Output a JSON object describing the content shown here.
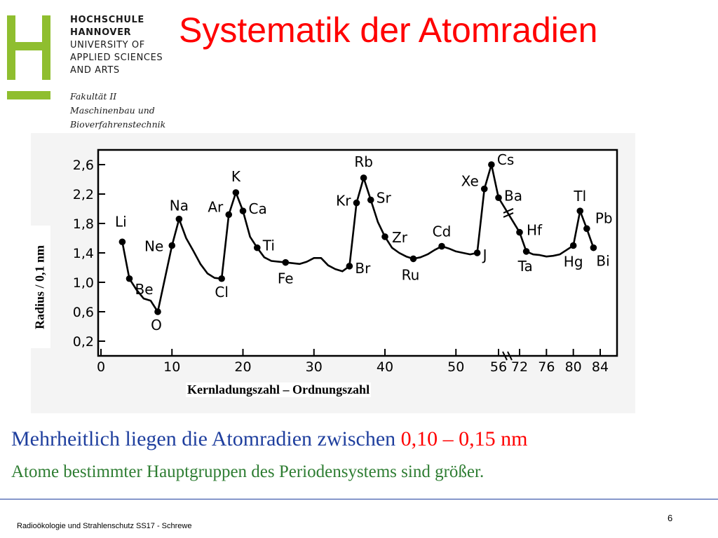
{
  "header": {
    "title": "Systematik der Atomradien",
    "university_lines": [
      "HOCHSCHULE",
      "HANNOVER",
      "UNIVERSITY OF",
      "APPLIED SCIENCES",
      "AND ARTS"
    ],
    "faculty_lines": [
      "Fakultät II",
      "Maschinenbau und",
      "Bioverfahrenstechnik"
    ],
    "logo_color": "#8fbe2f"
  },
  "chart_data": {
    "type": "line",
    "ylabel": "Radius / 0,1 nm",
    "xlabel": "Kernladungszahl – Ordnungszahl",
    "y_ticks": [
      "0,2",
      "0,6",
      "1,0",
      "1,4",
      "1,8",
      "2,2",
      "2,6"
    ],
    "ylim": [
      0,
      2.8
    ],
    "x_ticks": [
      "0",
      "10",
      "20",
      "30",
      "40",
      "50",
      "56",
      "72",
      "76",
      "80",
      "84"
    ],
    "axis_break": "56-72",
    "series": [
      {
        "points": [
          {
            "x": 3,
            "y": 1.55,
            "label": "Li"
          },
          {
            "x": 4,
            "y": 1.05,
            "label": "Be"
          },
          {
            "x": 5,
            "y": 0.9
          },
          {
            "x": 6,
            "y": 0.78
          },
          {
            "x": 7,
            "y": 0.75
          },
          {
            "x": 8,
            "y": 0.6,
            "label": "O"
          },
          {
            "x": 10,
            "y": 1.5,
            "label": "Ne"
          },
          {
            "x": 11,
            "y": 1.86,
            "label": "Na"
          },
          {
            "x": 12,
            "y": 1.6
          },
          {
            "x": 13,
            "y": 1.43
          },
          {
            "x": 14,
            "y": 1.25
          },
          {
            "x": 15,
            "y": 1.12
          },
          {
            "x": 16,
            "y": 1.06
          },
          {
            "x": 17,
            "y": 1.05,
            "label": "Cl"
          },
          {
            "x": 18,
            "y": 1.92,
            "label": "Ar"
          },
          {
            "x": 19,
            "y": 2.22,
            "label": "K"
          },
          {
            "x": 20,
            "y": 1.97,
            "label": "Ca"
          },
          {
            "x": 21,
            "y": 1.62
          },
          {
            "x": 22,
            "y": 1.47,
            "label": "Ti"
          },
          {
            "x": 23,
            "y": 1.34
          },
          {
            "x": 24,
            "y": 1.29
          },
          {
            "x": 25,
            "y": 1.28
          },
          {
            "x": 26,
            "y": 1.27,
            "label": "Fe"
          },
          {
            "x": 27,
            "y": 1.26
          },
          {
            "x": 28,
            "y": 1.25
          },
          {
            "x": 29,
            "y": 1.28
          },
          {
            "x": 30,
            "y": 1.33
          },
          {
            "x": 31,
            "y": 1.33
          },
          {
            "x": 32,
            "y": 1.23
          },
          {
            "x": 33,
            "y": 1.18
          },
          {
            "x": 34,
            "y": 1.15
          },
          {
            "x": 35,
            "y": 1.22,
            "label": "Br"
          },
          {
            "x": 36,
            "y": 2.08,
            "label": "Kr"
          },
          {
            "x": 37,
            "y": 2.42,
            "label": "Rb"
          },
          {
            "x": 38,
            "y": 2.12,
            "label": "Sr"
          },
          {
            "x": 39,
            "y": 1.82
          },
          {
            "x": 40,
            "y": 1.62,
            "label": "Zr"
          },
          {
            "x": 41,
            "y": 1.47
          },
          {
            "x": 42,
            "y": 1.4
          },
          {
            "x": 43,
            "y": 1.35
          },
          {
            "x": 44,
            "y": 1.32,
            "label": "Ru"
          },
          {
            "x": 45,
            "y": 1.34
          },
          {
            "x": 46,
            "y": 1.38
          },
          {
            "x": 47,
            "y": 1.44
          },
          {
            "x": 48,
            "y": 1.49,
            "label": "Cd"
          },
          {
            "x": 49,
            "y": 1.46
          },
          {
            "x": 50,
            "y": 1.42
          },
          {
            "x": 51,
            "y": 1.4
          },
          {
            "x": 52,
            "y": 1.38
          },
          {
            "x": 53,
            "y": 1.4,
            "label": "J"
          },
          {
            "x": 54,
            "y": 2.27,
            "label": "Xe"
          },
          {
            "x": 55,
            "y": 2.6,
            "label": "Cs"
          },
          {
            "x": 56,
            "y": 2.15,
            "label": "Ba"
          },
          {
            "x": 72,
            "y": 1.68,
            "label": "Hf"
          },
          {
            "x": 73,
            "y": 1.42,
            "label": "Ta"
          },
          {
            "x": 74,
            "y": 1.38
          },
          {
            "x": 75,
            "y": 1.37
          },
          {
            "x": 76,
            "y": 1.35
          },
          {
            "x": 77,
            "y": 1.36
          },
          {
            "x": 78,
            "y": 1.38
          },
          {
            "x": 79,
            "y": 1.44
          },
          {
            "x": 80,
            "y": 1.5,
            "label": "Hg"
          },
          {
            "x": 81,
            "y": 1.97,
            "label": "Tl"
          },
          {
            "x": 82,
            "y": 1.73,
            "label": "Pb"
          },
          {
            "x": 83,
            "y": 1.47,
            "label": "Bi"
          }
        ]
      }
    ]
  },
  "body": {
    "line1_prefix": "Mehrheitlich liegen die Atomradien zwischen  ",
    "line1_highlight": "0,10 – 0,15 nm",
    "line2": "Atome bestimmter Hauptgruppen des Periodensystems sind größer."
  },
  "footer": {
    "left": "Radioökologie und Strahlenschutz SS17 - Schrewe",
    "page_number": "6"
  },
  "colors": {
    "title": "#ff0000",
    "body_blue": "#1f3f9e",
    "body_green": "#2e7d32",
    "highlight": "#ff0000"
  }
}
